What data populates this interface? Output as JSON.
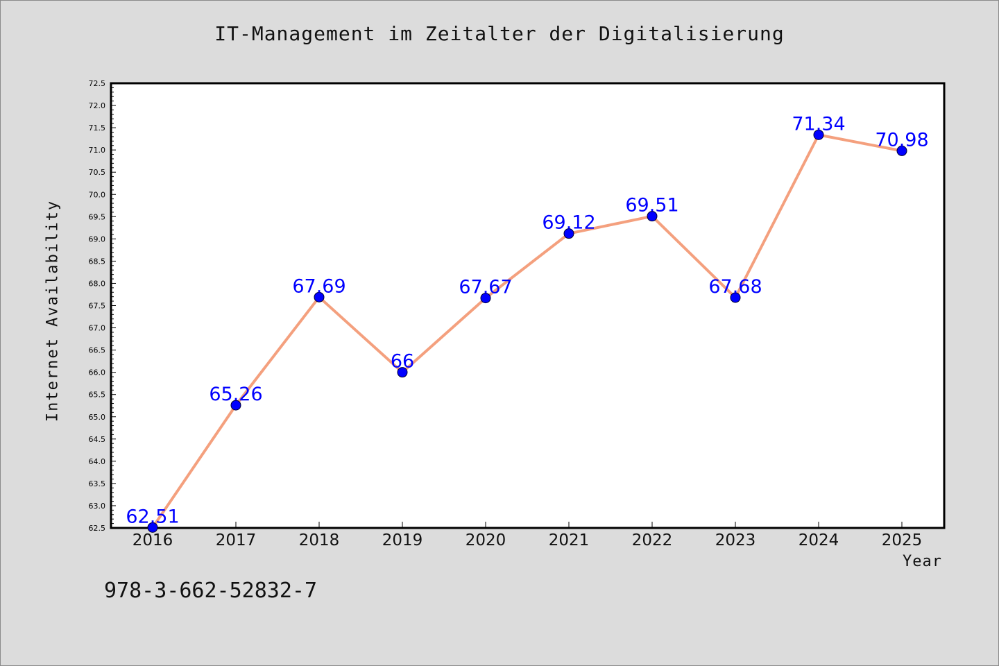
{
  "chart_data": {
    "type": "line",
    "title": "IT-Management im Zeitalter der Digitalisierung",
    "xlabel": "Year",
    "ylabel": "Internet Availability",
    "categories": [
      "2016",
      "2017",
      "2018",
      "2019",
      "2020",
      "2021",
      "2022",
      "2023",
      "2024",
      "2025"
    ],
    "values": [
      62.51,
      65.26,
      67.69,
      66,
      67.67,
      69.12,
      69.51,
      67.68,
      71.34,
      70.98
    ],
    "data_labels": [
      "62.51",
      "65.26",
      "67.69",
      "66",
      "67.67",
      "69.12",
      "69.51",
      "67.68",
      "71.34",
      "70.98"
    ],
    "ylim": [
      62.5,
      72.5
    ],
    "yticks": [
      "62.5",
      "63.0",
      "63.5",
      "64.0",
      "64.5",
      "65.0",
      "65.5",
      "66.0",
      "66.5",
      "67.0",
      "67.5",
      "68.0",
      "68.5",
      "69.0",
      "69.5",
      "70.0",
      "70.5",
      "71.0",
      "71.5",
      "72.0",
      "72.5"
    ],
    "grid": false,
    "colors": {
      "line": "#f4a07e",
      "marker": "#0000ff",
      "data_label": "#0000ff",
      "plot_background": "#ffffff",
      "page_background": "#dcdcdc"
    }
  },
  "footer_text": "978-3-662-52832-7"
}
